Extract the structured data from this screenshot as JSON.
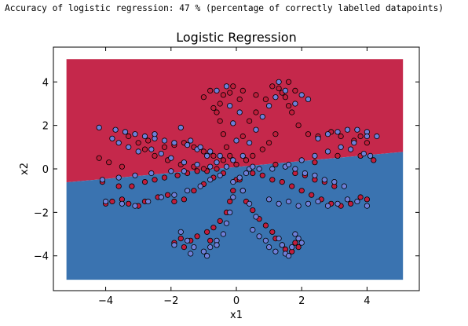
{
  "console_output": "Accuracy of logistic regression: 47 % (percentage of correctly labelled datapoints)",
  "colors": {
    "red_region": "#c5284b",
    "blue_region": "#3a73b0",
    "red_point": "#c01e3c",
    "blue_point": "#6e7fd8",
    "point_edge": "#000000"
  },
  "chart_data": {
    "type": "scatter",
    "title": "Logistic Regression",
    "xlabel": "x1",
    "ylabel": "x2",
    "xlim": [
      -5.6,
      5.6
    ],
    "ylim": [
      -5.6,
      5.6
    ],
    "xticks": [
      "−4",
      "−2",
      "0",
      "2",
      "4"
    ],
    "xtick_values": [
      -4,
      -2,
      0,
      2,
      4
    ],
    "yticks": [
      "4",
      "2",
      "0",
      "−2",
      "−4"
    ],
    "ytick_values": [
      4,
      2,
      0,
      -2,
      -4
    ],
    "decision_regions": {
      "x_range": [
        -5.2,
        5.1
      ],
      "y_range": [
        -5.1,
        5.05
      ],
      "boundary": [
        [
          -5.2,
          -0.62
        ],
        [
          5.1,
          0.78
        ]
      ],
      "above": "red",
      "below": "blue"
    },
    "series": [
      {
        "class": "red",
        "points": [
          [
            -0.1,
            3.8
          ],
          [
            -0.2,
            3.5
          ],
          [
            -0.4,
            3.4
          ],
          [
            -0.5,
            3.0
          ],
          [
            -0.6,
            2.6
          ],
          [
            -0.5,
            2.2
          ],
          [
            -0.4,
            1.6
          ],
          [
            -0.3,
            1.0
          ],
          [
            -0.2,
            0.6
          ],
          [
            0.0,
            0.2
          ],
          [
            0.2,
            3.6
          ],
          [
            0.1,
            3.2
          ],
          [
            -0.8,
            3.6
          ],
          [
            -1.0,
            3.3
          ],
          [
            -0.7,
            2.8
          ],
          [
            0.6,
            3.4
          ],
          [
            0.9,
            3.2
          ],
          [
            0.6,
            2.6
          ],
          [
            0.4,
            2.2
          ],
          [
            0.2,
            1.5
          ],
          [
            1.1,
            3.8
          ],
          [
            1.3,
            3.7
          ],
          [
            1.5,
            3.3
          ],
          [
            1.6,
            2.9
          ],
          [
            1.7,
            2.6
          ],
          [
            1.9,
            2.0
          ],
          [
            2.2,
            1.6
          ],
          [
            2.5,
            1.5
          ],
          [
            2.9,
            1.7
          ],
          [
            3.2,
            1.5
          ],
          [
            3.6,
            1.3
          ],
          [
            3.8,
            1.5
          ],
          [
            4.0,
            1.2
          ],
          [
            1.2,
            1.6
          ],
          [
            1.0,
            1.2
          ],
          [
            0.8,
            0.9
          ],
          [
            0.5,
            0.6
          ],
          [
            0.3,
            0.4
          ],
          [
            -4.0,
            -1.6
          ],
          [
            -3.8,
            -1.5
          ],
          [
            -3.5,
            -1.4
          ],
          [
            -3.3,
            -1.6
          ],
          [
            -3.0,
            -1.7
          ],
          [
            -2.8,
            -1.5
          ],
          [
            -2.4,
            -1.3
          ],
          [
            -2.1,
            -1.2
          ],
          [
            -1.9,
            -1.5
          ],
          [
            -1.6,
            -1.4
          ],
          [
            -1.3,
            -1.0
          ],
          [
            -1.0,
            -0.7
          ],
          [
            -0.7,
            -0.4
          ],
          [
            -0.4,
            -0.2
          ],
          [
            -3.6,
            -0.8
          ],
          [
            -3.2,
            -0.8
          ],
          [
            -2.8,
            -0.6
          ],
          [
            -2.5,
            -0.5
          ],
          [
            -2.2,
            -0.4
          ],
          [
            -1.8,
            -0.3
          ],
          [
            -1.5,
            -0.2
          ],
          [
            -1.2,
            -0.1
          ],
          [
            -0.9,
            -0.1
          ],
          [
            -0.6,
            0.0
          ],
          [
            -1.6,
            -3.6
          ],
          [
            -1.4,
            -3.3
          ],
          [
            -1.2,
            -3.1
          ],
          [
            -0.9,
            -2.9
          ],
          [
            -0.7,
            -2.7
          ],
          [
            -0.5,
            -2.4
          ],
          [
            -0.3,
            -2.0
          ],
          [
            -0.2,
            -1.5
          ],
          [
            -0.1,
            -1.0
          ],
          [
            0.0,
            -0.5
          ],
          [
            -1.9,
            -3.4
          ],
          [
            -1.7,
            -3.2
          ],
          [
            1.1,
            -2.9
          ],
          [
            1.2,
            -3.2
          ],
          [
            1.4,
            -3.5
          ],
          [
            1.5,
            -3.7
          ],
          [
            1.7,
            -3.8
          ],
          [
            1.9,
            -3.6
          ],
          [
            0.9,
            -2.6
          ],
          [
            0.7,
            -2.3
          ],
          [
            0.5,
            -1.9
          ],
          [
            0.3,
            -1.5
          ],
          [
            0.2,
            -1.0
          ],
          [
            0.1,
            -0.5
          ],
          [
            2.0,
            -1.0
          ],
          [
            2.3,
            -1.2
          ],
          [
            2.6,
            -1.4
          ],
          [
            2.9,
            -1.6
          ],
          [
            3.2,
            -1.7
          ],
          [
            3.5,
            -1.6
          ],
          [
            3.8,
            -1.3
          ],
          [
            4.0,
            -1.4
          ],
          [
            1.7,
            -0.8
          ],
          [
            1.4,
            -0.6
          ],
          [
            1.1,
            -0.5
          ],
          [
            0.8,
            -0.3
          ],
          [
            0.5,
            -0.2
          ],
          [
            3.0,
            -0.8
          ],
          [
            2.7,
            -0.6
          ],
          [
            2.4,
            -0.5
          ],
          [
            2.1,
            -0.3
          ],
          [
            1.8,
            -0.2
          ],
          [
            1.5,
            0.1
          ],
          [
            1.2,
            0.2
          ],
          [
            -2.2,
            1.0
          ],
          [
            -1.9,
            1.1
          ],
          [
            -1.6,
            1.2
          ],
          [
            -1.3,
            1.0
          ],
          [
            -1.0,
            0.8
          ],
          [
            -0.7,
            0.6
          ],
          [
            -0.4,
            0.4
          ],
          [
            -2.8,
            0.9
          ],
          [
            -2.5,
            0.6
          ],
          [
            -2.1,
            0.4
          ],
          [
            -1.7,
            0.2
          ],
          [
            -1.3,
            0.1
          ],
          [
            -1.0,
            0.0
          ],
          [
            1.6,
            4.0
          ],
          [
            1.8,
            3.6
          ],
          [
            1.4,
            3.5
          ],
          [
            -0.6,
            -3.5
          ],
          [
            -0.8,
            -3.3
          ],
          [
            1.8,
            -3.4
          ],
          [
            2.4,
            0.3
          ],
          [
            3.1,
            0.6
          ],
          [
            3.8,
            0.6
          ],
          [
            4.2,
            0.4
          ],
          [
            -4.2,
            0.5
          ],
          [
            -3.9,
            0.3
          ],
          [
            -4.1,
            -0.6
          ],
          [
            -3.5,
            0.1
          ],
          [
            -3.0,
            1.2
          ],
          [
            -3.3,
            1.5
          ],
          [
            -2.7,
            1.3
          ]
        ]
      },
      {
        "class": "blue",
        "points": [
          [
            -0.3,
            3.8
          ],
          [
            -0.6,
            3.6
          ],
          [
            -0.2,
            2.9
          ],
          [
            0.1,
            2.6
          ],
          [
            -0.1,
            2.1
          ],
          [
            0.0,
            1.3
          ],
          [
            -0.1,
            0.4
          ],
          [
            1.3,
            4.0
          ],
          [
            1.5,
            3.6
          ],
          [
            1.2,
            3.3
          ],
          [
            1.0,
            2.9
          ],
          [
            0.8,
            2.4
          ],
          [
            0.6,
            1.8
          ],
          [
            0.4,
            1.2
          ],
          [
            0.2,
            0.6
          ],
          [
            1.8,
            3.0
          ],
          [
            2.0,
            3.4
          ],
          [
            2.2,
            3.2
          ],
          [
            -4.2,
            1.9
          ],
          [
            -3.7,
            1.8
          ],
          [
            -3.4,
            1.7
          ],
          [
            -3.1,
            1.6
          ],
          [
            -2.8,
            1.5
          ],
          [
            -2.5,
            1.4
          ],
          [
            -2.2,
            1.3
          ],
          [
            -1.9,
            1.2
          ],
          [
            -1.5,
            1.1
          ],
          [
            -1.2,
            0.9
          ],
          [
            -0.9,
            0.6
          ],
          [
            -0.6,
            0.3
          ],
          [
            -0.3,
            0.1
          ],
          [
            -3.8,
            1.4
          ],
          [
            -3.6,
            1.2
          ],
          [
            -3.3,
            1.0
          ],
          [
            -3.0,
            0.8
          ],
          [
            -4.0,
            -1.5
          ],
          [
            -3.5,
            -1.6
          ],
          [
            -3.1,
            -1.7
          ],
          [
            -2.7,
            -1.5
          ],
          [
            -2.3,
            -1.3
          ],
          [
            -1.9,
            -1.2
          ],
          [
            -1.5,
            -1.0
          ],
          [
            -1.1,
            -0.8
          ],
          [
            -0.8,
            -0.5
          ],
          [
            -0.5,
            -0.3
          ],
          [
            -1.7,
            -2.9
          ],
          [
            -1.5,
            -3.3
          ],
          [
            -1.3,
            -3.6
          ],
          [
            -1.0,
            -3.8
          ],
          [
            -0.8,
            -3.6
          ],
          [
            -0.6,
            -3.3
          ],
          [
            -0.4,
            -3.0
          ],
          [
            -0.3,
            -2.5
          ],
          [
            -0.2,
            -2.0
          ],
          [
            -0.1,
            -1.3
          ],
          [
            -0.1,
            -0.6
          ],
          [
            0.5,
            -2.8
          ],
          [
            0.7,
            -3.1
          ],
          [
            0.9,
            -3.3
          ],
          [
            1.0,
            -3.6
          ],
          [
            1.2,
            -3.8
          ],
          [
            1.5,
            -3.9
          ],
          [
            1.7,
            -3.6
          ],
          [
            1.9,
            -3.2
          ],
          [
            0.6,
            -2.2
          ],
          [
            0.4,
            -1.6
          ],
          [
            0.2,
            -1.0
          ],
          [
            0.1,
            -0.4
          ],
          [
            1.0,
            -1.4
          ],
          [
            1.3,
            -1.6
          ],
          [
            1.6,
            -1.5
          ],
          [
            1.9,
            -1.7
          ],
          [
            2.2,
            -1.6
          ],
          [
            2.5,
            -1.5
          ],
          [
            2.8,
            -1.7
          ],
          [
            3.1,
            -1.6
          ],
          [
            3.4,
            -1.4
          ],
          [
            3.7,
            -1.5
          ],
          [
            4.0,
            -1.7
          ],
          [
            3.3,
            -0.8
          ],
          [
            3.0,
            -0.6
          ],
          [
            2.7,
            -0.5
          ],
          [
            2.4,
            -0.3
          ],
          [
            2.1,
            -0.2
          ],
          [
            1.8,
            0.0
          ],
          [
            1.5,
            0.1
          ],
          [
            1.1,
            0.0
          ],
          [
            0.7,
            0.0
          ],
          [
            0.4,
            0.0
          ],
          [
            2.5,
            1.4
          ],
          [
            2.8,
            1.6
          ],
          [
            3.1,
            1.7
          ],
          [
            3.4,
            1.8
          ],
          [
            3.7,
            1.8
          ],
          [
            4.0,
            1.7
          ],
          [
            4.3,
            1.5
          ],
          [
            4.0,
            1.5
          ],
          [
            3.6,
            1.2
          ],
          [
            3.2,
            1.0
          ],
          [
            2.8,
            0.8
          ],
          [
            2.4,
            0.6
          ],
          [
            2.0,
            0.4
          ],
          [
            1.6,
            0.2
          ],
          [
            3.5,
            0.9
          ],
          [
            3.9,
            0.7
          ],
          [
            4.1,
            0.6
          ],
          [
            -2.5,
            1.6
          ],
          [
            -1.7,
            1.9
          ],
          [
            -1.4,
            1.3
          ],
          [
            -1.1,
            1.0
          ],
          [
            -0.8,
            0.8
          ],
          [
            -0.5,
            0.6
          ],
          [
            1.8,
            -3.0
          ],
          [
            2.0,
            -3.4
          ],
          [
            1.3,
            -3.2
          ],
          [
            -2.6,
            0.9
          ],
          [
            -2.3,
            0.7
          ],
          [
            -2.0,
            0.5
          ],
          [
            -1.6,
            0.3
          ],
          [
            -1.2,
            0.2
          ],
          [
            -0.8,
            0.1
          ],
          [
            0.3,
            -0.2
          ],
          [
            0.5,
            0.1
          ],
          [
            -1.6,
            -0.1
          ],
          [
            -2.0,
            -0.1
          ],
          [
            -2.6,
            -0.2
          ],
          [
            -3.1,
            -0.3
          ],
          [
            -3.6,
            -0.4
          ],
          [
            -4.1,
            -0.5
          ],
          [
            -1.9,
            -3.5
          ],
          [
            -1.4,
            -3.9
          ],
          [
            -0.9,
            -4.0
          ],
          [
            -0.6,
            -3.5
          ],
          [
            1.6,
            -4.0
          ],
          [
            1.4,
            -3.5
          ]
        ]
      }
    ]
  }
}
